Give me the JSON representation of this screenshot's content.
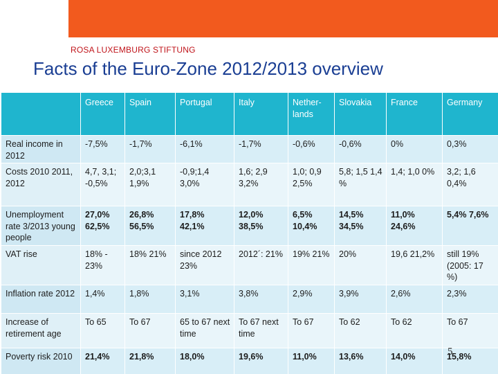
{
  "header": {
    "organization": "ROSA LUXEMBURG STIFTUNG",
    "title": "Facts of the Euro-Zone 2012/2013 overview"
  },
  "table": {
    "columns": [
      "Greece",
      "Spain",
      "Portugal",
      "Italy",
      "Nether-\nlands",
      "Slovakia",
      "France",
      "Germany"
    ],
    "rows": [
      {
        "label": "Real income in 2012",
        "bold": false,
        "cells": [
          "-7,5%",
          "-1,7%",
          "-6,1%",
          "-1,7%",
          "-0,6%",
          "-0,6%",
          "0%",
          "0,3%"
        ]
      },
      {
        "label": "Costs 2010 2011, 2012",
        "bold": false,
        "cells": [
          "4,7, 3,1; -0,5%",
          "2,0;3,1 1,9%",
          "-0,9;1,4 3,0%",
          "1,6; 2,9 3,2%",
          "1,0; 0,9 2,5%",
          "5,8; 1,5 1,4 %",
          "1,4; 1,0 0%",
          "3,2; 1,6 0,4%"
        ]
      },
      {
        "label": "Unemployment rate 3/2013 young people",
        "bold": true,
        "cells": [
          "27,0% 62,5%",
          "26,8% 56,5%",
          "17,8% 42,1%",
          "12,0% 38,5%",
          "6,5% 10,4%",
          "14,5% 34,5%",
          "11,0% 24,6%",
          "5,4% 7,6%"
        ]
      },
      {
        "label": "VAT rise",
        "bold": false,
        "cells": [
          "18% - 23%",
          "18% 21%",
          "since 2012 23%",
          "2012´: 21%",
          "19% 21%",
          "20%",
          "19,6 21,2%",
          "still 19% (2005: 17 %)"
        ]
      },
      {
        "label": "Inflation rate 2012",
        "bold": false,
        "cells": [
          "1,4%",
          "1,8%",
          "3,1%",
          "3,8%",
          "2,9%",
          "3,9%",
          "2,6%",
          "2,3%"
        ]
      },
      {
        "label": "Increase of retirement age",
        "bold": false,
        "cells": [
          "To 65",
          "To 67",
          "65 to 67 next time",
          "To 67 next time",
          "To 67",
          "To 62",
          "To 62",
          "To 67"
        ]
      },
      {
        "label": "Poverty risk 2010",
        "bold": true,
        "cells": [
          "21,4%",
          "21,8%",
          "18,0%",
          "19,6%",
          "11,0%",
          "13,6%",
          "14,0%",
          "15,8%"
        ]
      }
    ]
  },
  "page_number": "5",
  "colors": {
    "banner": "#f25a1e",
    "organization": "#c0141a",
    "title": "#1a3e93",
    "table_header": "#1fb5ce",
    "table_body": "#d8eef7"
  }
}
